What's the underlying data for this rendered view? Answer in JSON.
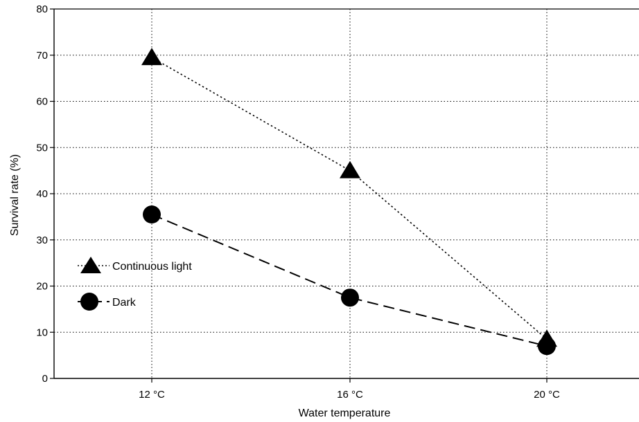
{
  "chart_data": {
    "type": "line",
    "x_categories": [
      "12 °C",
      "16 °C",
      "20 °C"
    ],
    "xlabel": "Water temperature",
    "ylabel": "Survival rate (%)",
    "ylim": [
      0,
      80
    ],
    "y_ticks": [
      "0",
      "10",
      "20",
      "30",
      "40",
      "50",
      "60",
      "70",
      "80"
    ],
    "grid": "dotted",
    "legend_position": "left-middle",
    "series": [
      {
        "name": "Continuous light",
        "marker": "triangle",
        "line_style": "dotted",
        "values": [
          69.5,
          45,
          8.5
        ]
      },
      {
        "name": "Dark",
        "marker": "circle",
        "line_style": "dashed",
        "values": [
          35.5,
          17.5,
          7
        ]
      }
    ]
  }
}
